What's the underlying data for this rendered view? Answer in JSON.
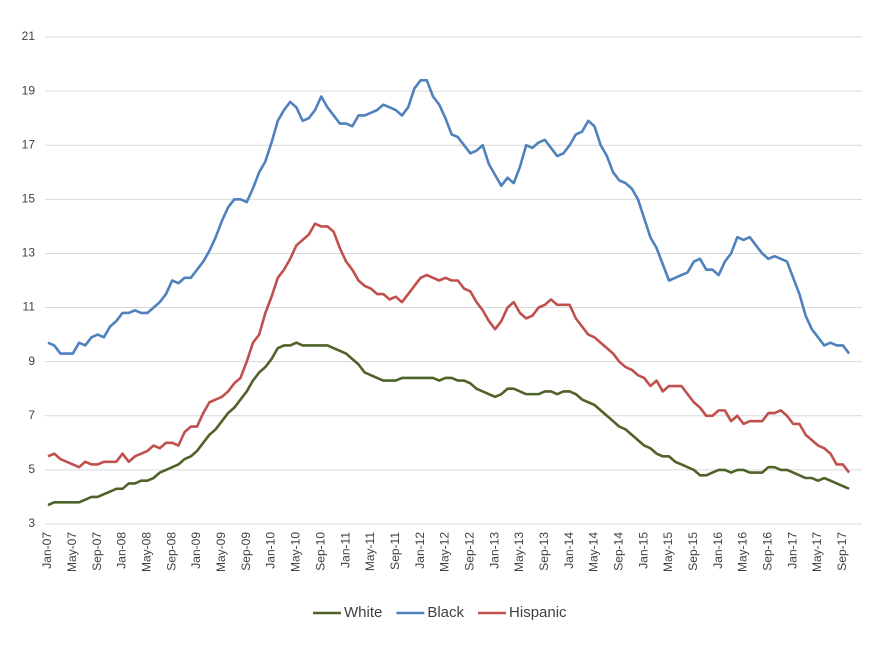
{
  "chart_data": {
    "type": "line",
    "categories": [
      "Jan-07",
      null,
      null,
      null,
      "May-07",
      null,
      null,
      null,
      "Sep-07",
      null,
      null,
      null,
      "Jan-08",
      null,
      null,
      null,
      "May-08",
      null,
      null,
      null,
      "Sep-08",
      null,
      null,
      null,
      "Jan-09",
      null,
      null,
      null,
      "May-09",
      null,
      null,
      null,
      "Sep-09",
      null,
      null,
      null,
      "Jan-10",
      null,
      null,
      null,
      "May-10",
      null,
      null,
      null,
      "Sep-10",
      null,
      null,
      null,
      "Jan-11",
      null,
      null,
      null,
      "May-11",
      null,
      null,
      null,
      "Sep-11",
      null,
      null,
      null,
      "Jan-12",
      null,
      null,
      null,
      "May-12",
      null,
      null,
      null,
      "Sep-12",
      null,
      null,
      null,
      "Jan-13",
      null,
      null,
      null,
      "May-13",
      null,
      null,
      null,
      "Sep-13",
      null,
      null,
      null,
      "Jan-14",
      null,
      null,
      null,
      "May-14",
      null,
      null,
      null,
      "Sep-14",
      null,
      null,
      null,
      "Jan-15",
      null,
      null,
      null,
      "May-15",
      null,
      null,
      null,
      "Sep-15",
      null,
      null,
      null,
      "Jan-16",
      null,
      null,
      null,
      "May-16",
      null,
      null,
      null,
      "Sep-16",
      null,
      null,
      null,
      "Jan-17",
      null,
      null,
      null,
      "May-17",
      null,
      null,
      null,
      "Sep-17",
      null
    ],
    "series": [
      {
        "name": "White",
        "color": "#4f6228",
        "values": [
          3.7,
          3.8,
          3.8,
          3.8,
          3.8,
          3.8,
          3.9,
          4.0,
          4.0,
          4.1,
          4.2,
          4.3,
          4.3,
          4.5,
          4.5,
          4.6,
          4.6,
          4.7,
          4.9,
          5.0,
          5.1,
          5.2,
          5.4,
          5.5,
          5.7,
          6.0,
          6.3,
          6.5,
          6.8,
          7.1,
          7.3,
          7.6,
          7.9,
          8.3,
          8.6,
          8.8,
          9.1,
          9.5,
          9.6,
          9.6,
          9.7,
          9.6,
          9.6,
          9.6,
          9.6,
          9.6,
          9.5,
          9.4,
          9.3,
          9.1,
          8.9,
          8.6,
          8.5,
          8.4,
          8.3,
          8.3,
          8.3,
          8.4,
          8.4,
          8.4,
          8.4,
          8.4,
          8.4,
          8.3,
          8.4,
          8.4,
          8.3,
          8.3,
          8.2,
          8.0,
          7.9,
          7.8,
          7.7,
          7.8,
          8.0,
          8.0,
          7.9,
          7.8,
          7.8,
          7.8,
          7.9,
          7.9,
          7.8,
          7.9,
          7.9,
          7.8,
          7.6,
          7.5,
          7.4,
          7.2,
          7.0,
          6.8,
          6.6,
          6.5,
          6.3,
          6.1,
          5.9,
          5.8,
          5.6,
          5.5,
          5.5,
          5.3,
          5.2,
          5.1,
          5.0,
          4.8,
          4.8,
          4.9,
          5.0,
          5.0,
          4.9,
          5.0,
          5.0,
          4.9,
          4.9,
          4.9,
          5.1,
          5.1,
          5.0,
          5.0,
          4.9,
          4.8,
          4.7,
          4.7,
          4.6,
          4.7,
          4.6,
          4.5,
          4.4,
          4.3
        ]
      },
      {
        "name": "Black",
        "color": "#4f81bd",
        "values": [
          9.7,
          9.6,
          9.3,
          9.3,
          9.3,
          9.7,
          9.6,
          9.9,
          10.0,
          9.9,
          10.3,
          10.5,
          10.8,
          10.8,
          10.9,
          10.8,
          10.8,
          11.0,
          11.2,
          11.5,
          12.0,
          11.9,
          12.1,
          12.1,
          12.4,
          12.7,
          13.1,
          13.6,
          14.2,
          14.7,
          15.0,
          15.0,
          14.9,
          15.4,
          16.0,
          16.4,
          17.1,
          17.9,
          18.3,
          18.6,
          18.4,
          17.9,
          18.0,
          18.3,
          18.8,
          18.4,
          18.1,
          17.8,
          17.8,
          17.7,
          18.1,
          18.1,
          18.2,
          18.3,
          18.5,
          18.4,
          18.3,
          18.1,
          18.4,
          19.1,
          19.4,
          19.4,
          18.8,
          18.5,
          18.0,
          17.4,
          17.3,
          17.0,
          16.7,
          16.8,
          17.0,
          16.3,
          15.9,
          15.5,
          15.8,
          15.6,
          16.2,
          17.0,
          16.9,
          17.1,
          17.2,
          16.9,
          16.6,
          16.7,
          17.0,
          17.4,
          17.5,
          17.9,
          17.7,
          17.0,
          16.6,
          16.0,
          15.7,
          15.6,
          15.4,
          15.0,
          14.3,
          13.6,
          13.2,
          12.6,
          12.0,
          12.1,
          12.2,
          12.3,
          12.7,
          12.8,
          12.4,
          12.4,
          12.2,
          12.7,
          13.0,
          13.6,
          13.5,
          13.6,
          13.3,
          13.0,
          12.8,
          12.9,
          12.8,
          12.7,
          12.1,
          11.5,
          10.7,
          10.2,
          9.9,
          9.6,
          9.7,
          9.6,
          9.6,
          9.3
        ]
      },
      {
        "name": "Hispanic",
        "color": "#c0504d",
        "values": [
          5.5,
          5.6,
          5.4,
          5.3,
          5.2,
          5.1,
          5.3,
          5.2,
          5.2,
          5.3,
          5.3,
          5.3,
          5.6,
          5.3,
          5.5,
          5.6,
          5.7,
          5.9,
          5.8,
          6.0,
          6.0,
          5.9,
          6.4,
          6.6,
          6.6,
          7.1,
          7.5,
          7.6,
          7.7,
          7.9,
          8.2,
          8.4,
          9.0,
          9.7,
          10.0,
          10.8,
          11.4,
          12.1,
          12.4,
          12.8,
          13.3,
          13.5,
          13.7,
          14.1,
          14.0,
          14.0,
          13.8,
          13.2,
          12.7,
          12.4,
          12.0,
          11.8,
          11.7,
          11.5,
          11.5,
          11.3,
          11.4,
          11.2,
          11.5,
          11.8,
          12.1,
          12.2,
          12.1,
          12.0,
          12.1,
          12.0,
          12.0,
          11.7,
          11.6,
          11.2,
          10.9,
          10.5,
          10.2,
          10.5,
          11.0,
          11.2,
          10.8,
          10.6,
          10.7,
          11.0,
          11.1,
          11.3,
          11.1,
          11.1,
          11.1,
          10.6,
          10.3,
          10.0,
          9.9,
          9.7,
          9.5,
          9.3,
          9.0,
          8.8,
          8.7,
          8.5,
          8.4,
          8.1,
          8.3,
          7.9,
          8.1,
          8.1,
          8.1,
          7.8,
          7.5,
          7.3,
          7.0,
          7.0,
          7.2,
          7.2,
          6.8,
          7.0,
          6.7,
          6.8,
          6.8,
          6.8,
          7.1,
          7.1,
          7.2,
          7.0,
          6.7,
          6.7,
          6.3,
          6.1,
          5.9,
          5.8,
          5.6,
          5.2,
          5.2,
          4.9
        ]
      }
    ],
    "ylim": [
      3,
      21
    ],
    "yticks": [
      3,
      5,
      7,
      9,
      11,
      13,
      15,
      17,
      19,
      21
    ],
    "grid": true,
    "legend": "bottom"
  }
}
